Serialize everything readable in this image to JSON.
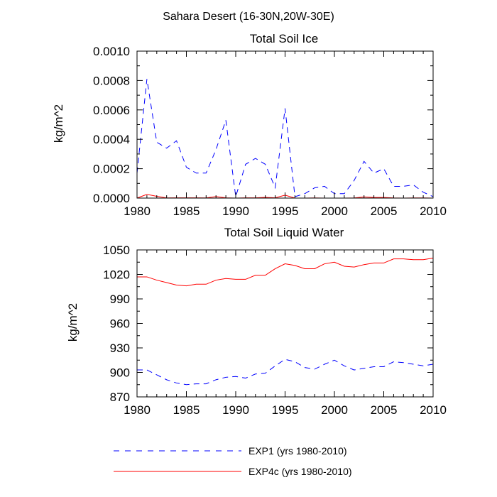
{
  "figure": {
    "title": "Sahara Desert (16-30N,20W-30E)"
  },
  "legend": {
    "placement": "bottom",
    "items": [
      {
        "label": "EXP1 (yrs 1980-2010)",
        "color": "#0000ff",
        "dash": "dashed"
      },
      {
        "label": "EXP4c (yrs 1980-2010)",
        "color": "#ff0000",
        "dash": "solid"
      }
    ]
  },
  "chart_data": [
    {
      "type": "line",
      "title": "Total Soil Ice",
      "xlabel": "",
      "ylabel": "kg/m^2",
      "xlim": [
        1980,
        2010
      ],
      "ylim": [
        0,
        0.001
      ],
      "xticks": [
        1980,
        1985,
        1990,
        1995,
        2000,
        2005,
        2010
      ],
      "yticks": [
        0.0,
        0.0002,
        0.0004,
        0.0006,
        0.0008,
        0.001
      ],
      "ytick_labels": [
        "0.0000",
        "0.0002",
        "0.0004",
        "0.0006",
        "0.0008",
        "0.0010"
      ],
      "x": [
        1980,
        1981,
        1982,
        1983,
        1984,
        1985,
        1986,
        1987,
        1988,
        1989,
        1990,
        1991,
        1992,
        1993,
        1994,
        1995,
        1996,
        1997,
        1998,
        1999,
        2000,
        2001,
        2002,
        2003,
        2004,
        2005,
        2006,
        2007,
        2008,
        2009,
        2010
      ],
      "series": [
        {
          "name": "EXP1 (yrs 1980-2010)",
          "color": "#0000ff",
          "dash": "dashed",
          "values": [
            0.00017,
            0.00081,
            0.00038,
            0.00034,
            0.00039,
            0.00021,
            0.00017,
            0.00017,
            0.00033,
            0.00053,
            1e-05,
            0.00023,
            0.00027,
            0.00023,
            7e-05,
            0.00061,
            1e-05,
            3e-05,
            7e-05,
            8e-05,
            3e-05,
            3e-05,
            0.00012,
            0.00025,
            0.00017,
            0.0002,
            8e-05,
            8e-05,
            9e-05,
            4e-05,
            1e-05
          ]
        },
        {
          "name": "EXP4c (yrs 1980-2010)",
          "color": "#ff0000",
          "dash": "solid",
          "values": [
            0.0,
            2.5e-05,
            1.2e-05,
            1e-06,
            2e-06,
            2e-06,
            2e-06,
            1e-06,
            1e-05,
            2e-06,
            0.0,
            2e-06,
            2e-06,
            5e-06,
            2e-06,
            2e-05,
            0.0,
            0.0,
            1e-06,
            0.0,
            0.0,
            0.0,
            1e-06,
            8e-06,
            4e-06,
            4e-06,
            1e-06,
            0.0,
            1e-06,
            1e-06,
            0.0
          ]
        }
      ]
    },
    {
      "type": "line",
      "title": "Total Soil Liquid Water",
      "xlabel": "",
      "ylabel": "kg/m^2",
      "xlim": [
        1980,
        2010
      ],
      "ylim": [
        870,
        1050
      ],
      "xticks": [
        1980,
        1985,
        1990,
        1995,
        2000,
        2005,
        2010
      ],
      "yticks": [
        870,
        900,
        930,
        960,
        990,
        1020,
        1050
      ],
      "ytick_labels": [
        "870",
        "900",
        "930",
        "960",
        "990",
        "1020",
        "1050"
      ],
      "x": [
        1980,
        1981,
        1982,
        1983,
        1984,
        1985,
        1986,
        1987,
        1988,
        1989,
        1990,
        1991,
        1992,
        1993,
        1994,
        1995,
        1996,
        1997,
        1998,
        1999,
        2000,
        2001,
        2002,
        2003,
        2004,
        2005,
        2006,
        2007,
        2008,
        2009,
        2010
      ],
      "series": [
        {
          "name": "EXP1 (yrs 1980-2010)",
          "color": "#0000ff",
          "dash": "dashed",
          "values": [
            903,
            903,
            897,
            891,
            887,
            885,
            886,
            886,
            891,
            894,
            895,
            893,
            898,
            899,
            908,
            916,
            913,
            906,
            904,
            910,
            915,
            908,
            903,
            905,
            907,
            907,
            913,
            912,
            910,
            908,
            910
          ]
        },
        {
          "name": "EXP4c (yrs 1980-2010)",
          "color": "#ff0000",
          "dash": "solid",
          "values": [
            1017,
            1017,
            1013,
            1010,
            1007,
            1006,
            1008,
            1008,
            1013,
            1015,
            1014,
            1014,
            1019,
            1019,
            1027,
            1033,
            1031,
            1027,
            1027,
            1033,
            1035,
            1030,
            1029,
            1032,
            1034,
            1034,
            1039,
            1039,
            1038,
            1038,
            1040
          ]
        }
      ]
    }
  ]
}
